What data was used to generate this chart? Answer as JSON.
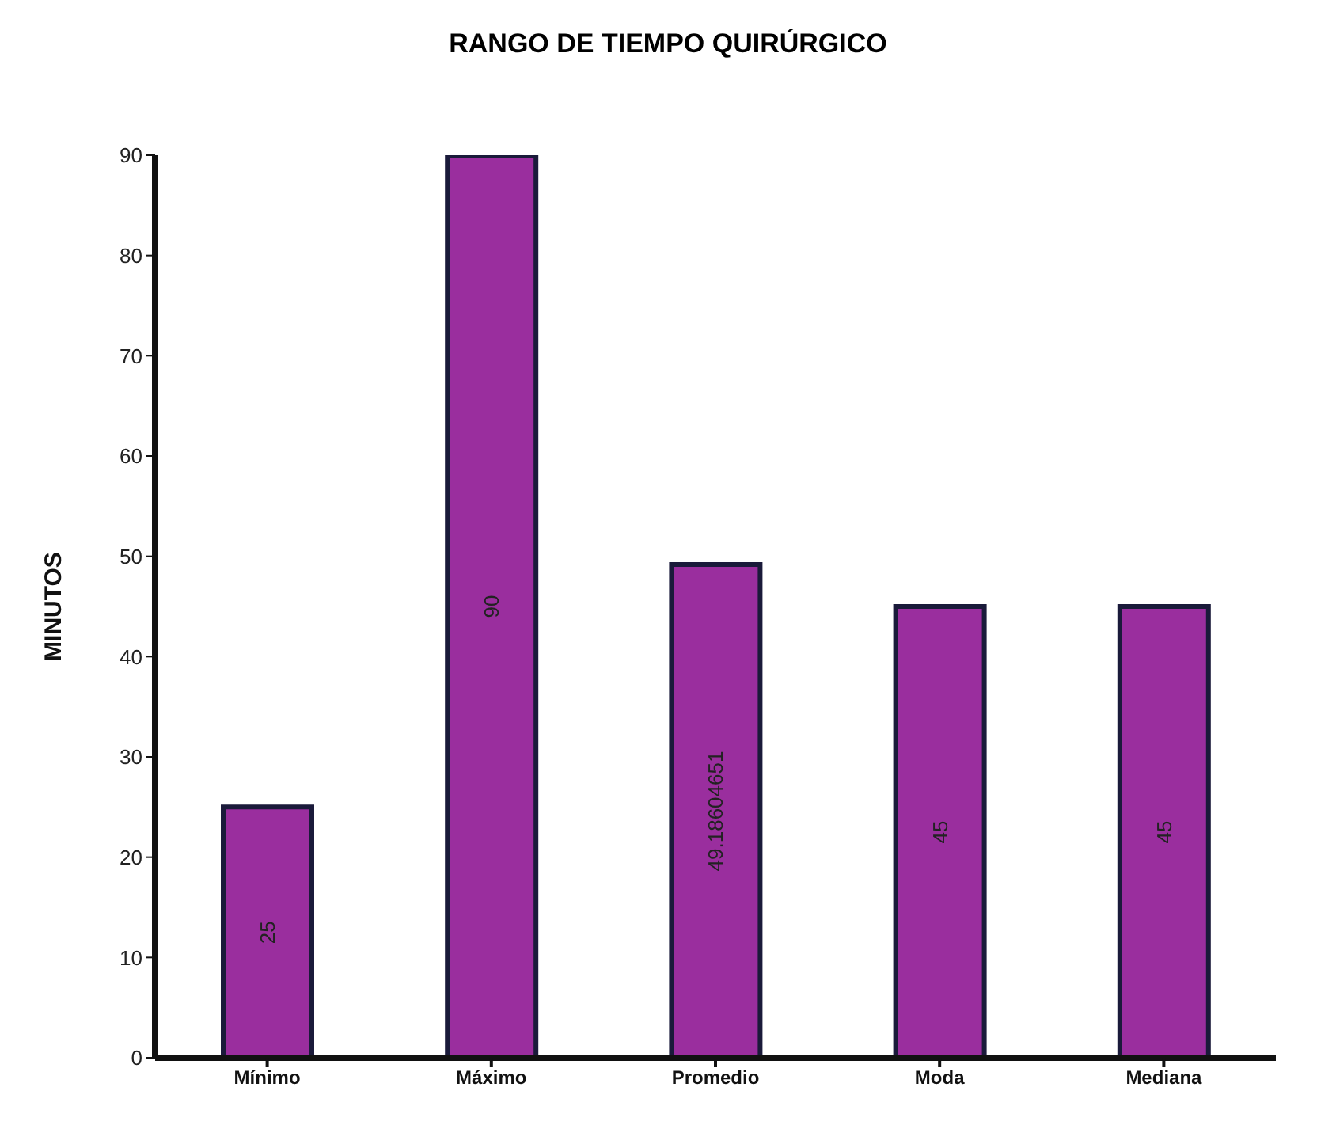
{
  "chart_data": {
    "type": "bar",
    "title": "RANGO DE TIEMPO QUIRÚRGICO",
    "ylabel": "MINUTOS",
    "categories": [
      "Mínimo",
      "Máximo",
      "Promedio",
      "Moda",
      "Mediana"
    ],
    "values": [
      25,
      90,
      49.18604651,
      45,
      45
    ],
    "color": "#9a2e9e",
    "ylim": [
      0,
      90
    ],
    "yticks": [
      0,
      10,
      20,
      30,
      40,
      50,
      60,
      70,
      80,
      90
    ],
    "grid": false,
    "data_labels": true
  }
}
